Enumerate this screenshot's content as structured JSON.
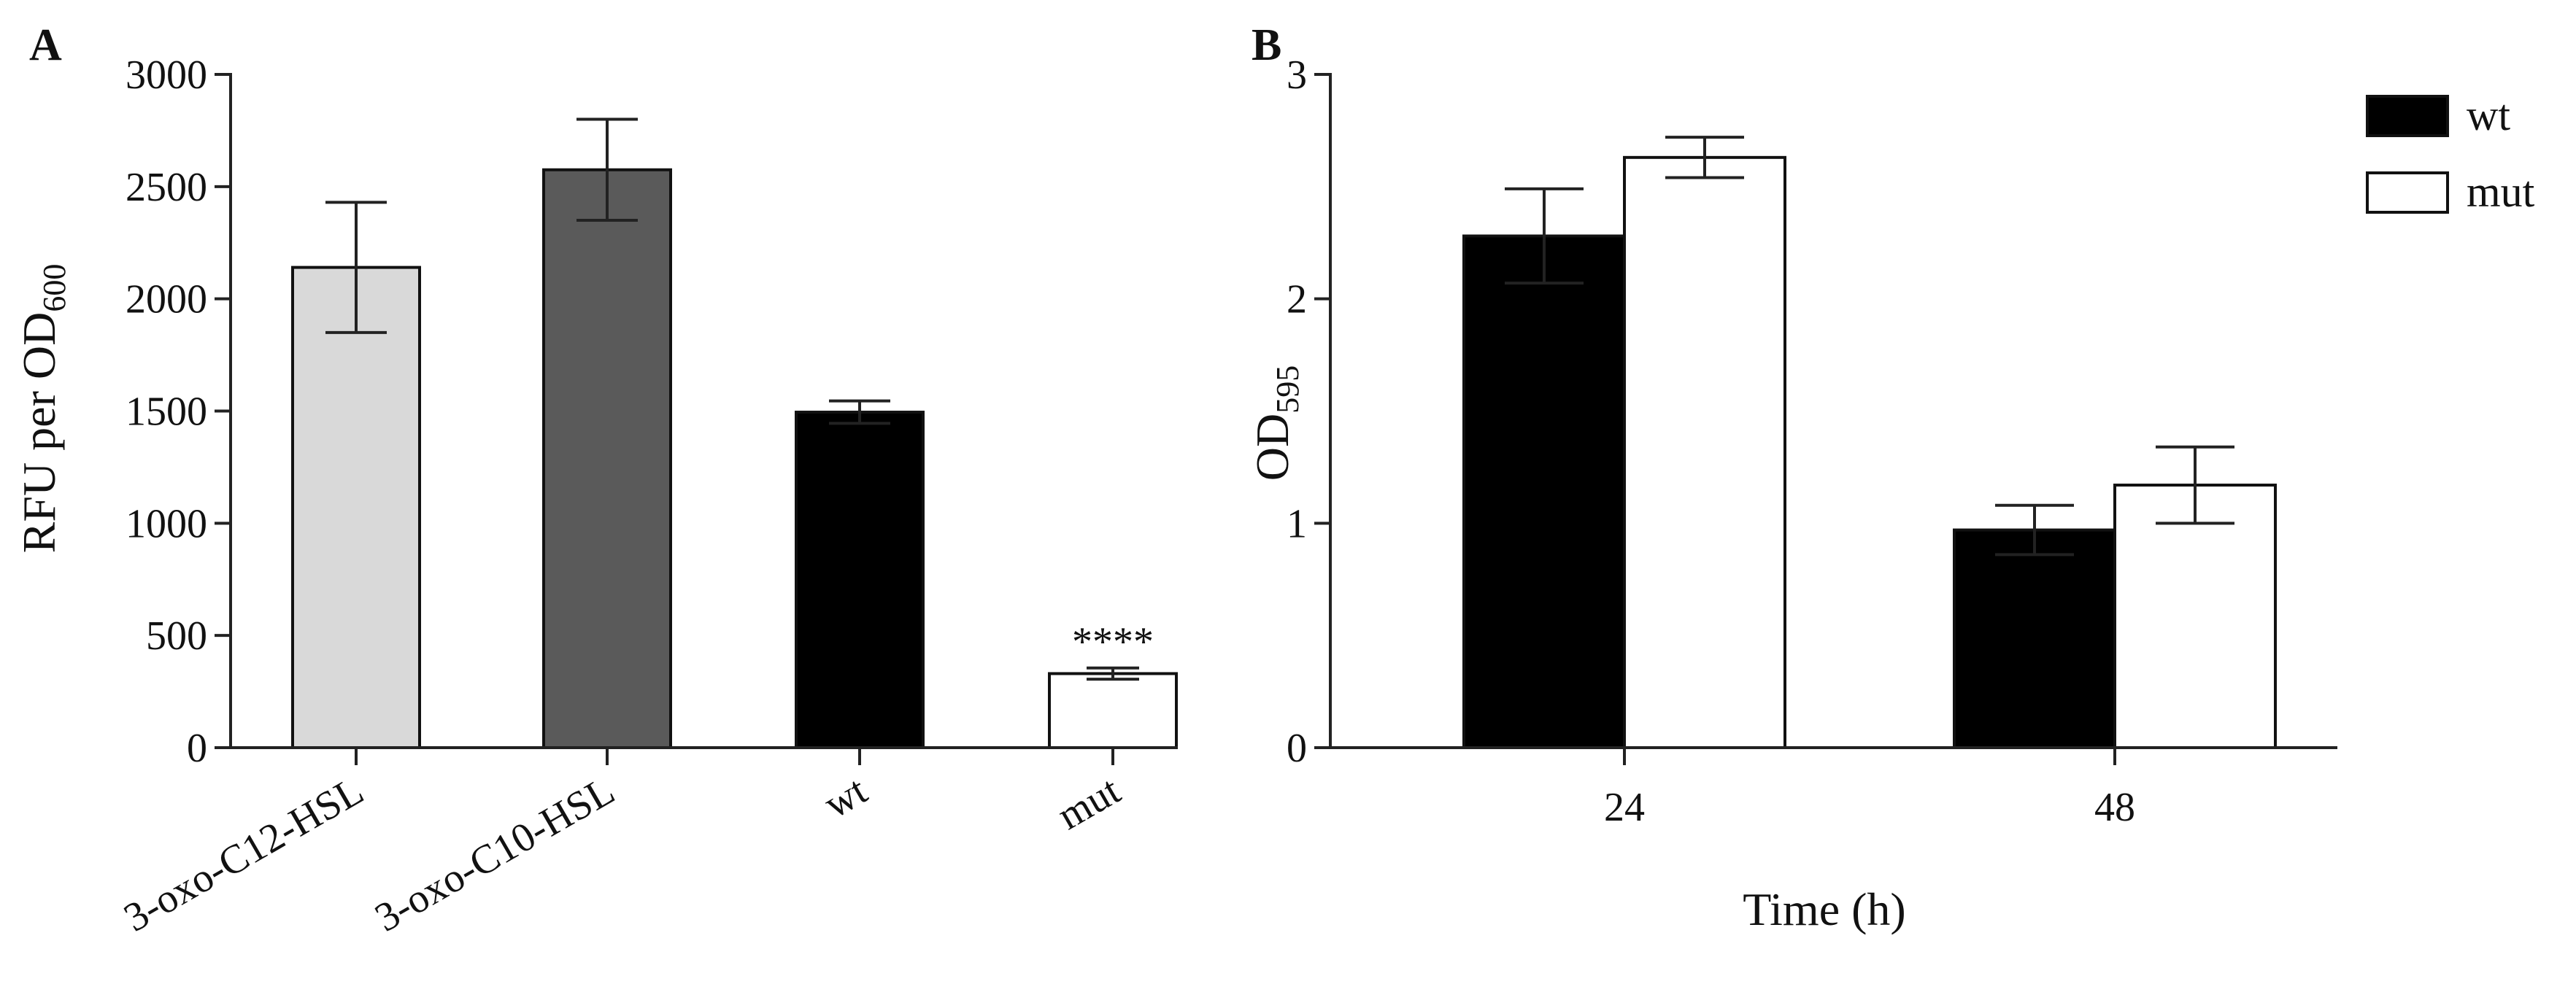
{
  "chart_data": [
    {
      "panel": "A",
      "type": "bar",
      "ylabel_main": "RFU per OD",
      "ylabel_sub": "600",
      "xlabel": "",
      "ylim": [
        0,
        3000
      ],
      "yticks": [
        "0",
        "500",
        "1000",
        "1500",
        "2000",
        "2500",
        "3000"
      ],
      "categories": [
        "3-oxo-C12-HSL",
        "3-oxo-C10-HSL",
        "wt",
        "mut"
      ],
      "values": [
        2140,
        2575,
        1495,
        330
      ],
      "errors": [
        290,
        225,
        50,
        25
      ],
      "colors": [
        "#d9d9d9",
        "#5a5a5a",
        "#000000",
        "#ffffff"
      ],
      "annotations": [
        {
          "category": "mut",
          "text": "****"
        }
      ]
    },
    {
      "panel": "B",
      "type": "bar",
      "ylabel_main": "OD",
      "ylabel_sub": "595",
      "xlabel": "Time (h)",
      "ylim": [
        0,
        3
      ],
      "yticks": [
        "0",
        "1",
        "2",
        "3"
      ],
      "categories": [
        "24",
        "48"
      ],
      "series": [
        {
          "name": "wt",
          "values": [
            2.28,
            0.97
          ],
          "errors": [
            0.21,
            0.11
          ],
          "color": "#000000"
        },
        {
          "name": "mut",
          "values": [
            2.63,
            1.17
          ],
          "errors": [
            0.09,
            0.17
          ],
          "color": "#ffffff"
        }
      ],
      "legend_position": "top-right"
    }
  ]
}
